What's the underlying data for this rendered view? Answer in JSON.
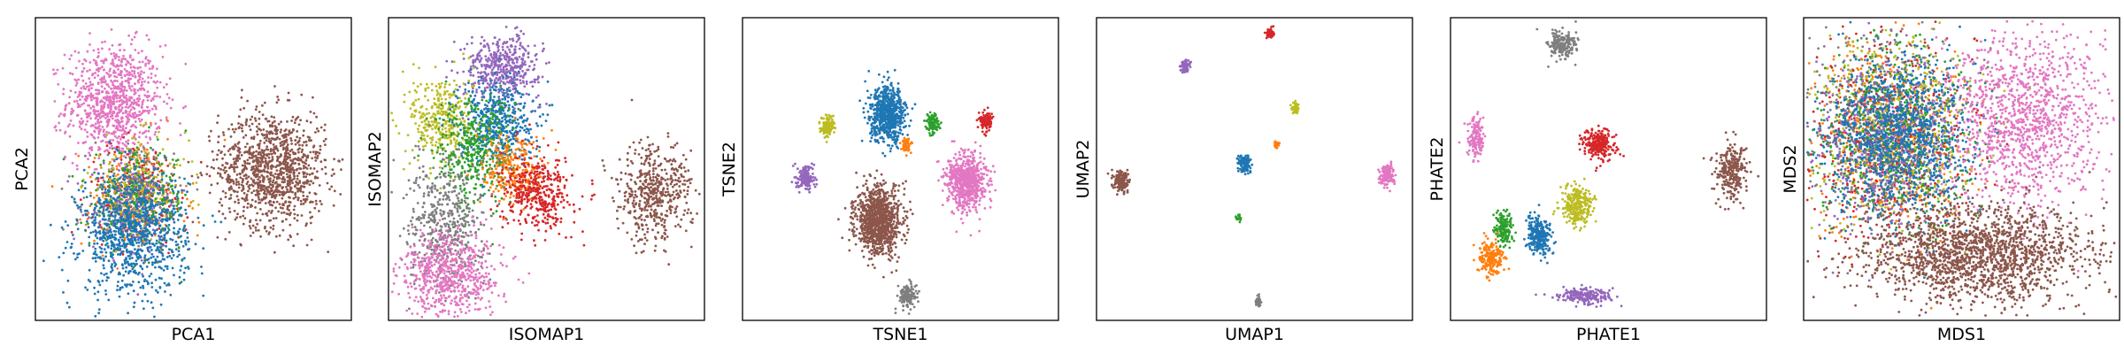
{
  "palette": {
    "blue": "#1f77b4",
    "orange": "#ff7f0e",
    "green": "#2ca02c",
    "red": "#d62728",
    "purple": "#9467bd",
    "brown": "#8c564b",
    "pink": "#e377c2",
    "gray": "#7f7f7f",
    "olive": "#bcbd22"
  },
  "chart_data": [
    {
      "type": "scatter",
      "title": "",
      "xlabel": "PCA1",
      "ylabel": "PCA2",
      "grid": false,
      "ticks": "none",
      "legend": "none",
      "clusters": [
        {
          "color": "pink",
          "cx": 0.25,
          "cy": 0.72,
          "sx": 0.075,
          "sy": 0.095,
          "n": 900
        },
        {
          "color": "brown",
          "cx": 0.75,
          "cy": 0.5,
          "sx": 0.085,
          "sy": 0.095,
          "n": 1100
        },
        {
          "color": "red",
          "cx": 0.33,
          "cy": 0.43,
          "sx": 0.08,
          "sy": 0.08,
          "n": 220
        },
        {
          "color": "orange",
          "cx": 0.31,
          "cy": 0.4,
          "sx": 0.08,
          "sy": 0.09,
          "n": 220
        },
        {
          "color": "gray",
          "cx": 0.3,
          "cy": 0.42,
          "sx": 0.07,
          "sy": 0.07,
          "n": 200
        },
        {
          "color": "olive",
          "cx": 0.32,
          "cy": 0.44,
          "sx": 0.08,
          "sy": 0.08,
          "n": 200
        },
        {
          "color": "green",
          "cx": 0.33,
          "cy": 0.4,
          "sx": 0.08,
          "sy": 0.08,
          "n": 220
        },
        {
          "color": "purple",
          "cx": 0.31,
          "cy": 0.36,
          "sx": 0.07,
          "sy": 0.08,
          "n": 150
        },
        {
          "color": "blue",
          "cx": 0.31,
          "cy": 0.29,
          "sx": 0.085,
          "sy": 0.1,
          "n": 1000
        }
      ]
    },
    {
      "type": "scatter",
      "title": "",
      "xlabel": "ISOMAP1",
      "ylabel": "ISOMAP2",
      "grid": false,
      "ticks": "none",
      "legend": "none",
      "clusters": [
        {
          "color": "purple",
          "cx": 0.36,
          "cy": 0.84,
          "sx": 0.06,
          "sy": 0.05,
          "n": 450
        },
        {
          "color": "olive",
          "cx": 0.17,
          "cy": 0.66,
          "sx": 0.05,
          "sy": 0.08,
          "n": 350
        },
        {
          "color": "blue",
          "cx": 0.34,
          "cy": 0.66,
          "sx": 0.06,
          "sy": 0.07,
          "n": 500
        },
        {
          "color": "green",
          "cx": 0.27,
          "cy": 0.56,
          "sx": 0.06,
          "sy": 0.09,
          "n": 380
        },
        {
          "color": "orange",
          "cx": 0.4,
          "cy": 0.5,
          "sx": 0.05,
          "sy": 0.06,
          "n": 250
        },
        {
          "color": "red",
          "cx": 0.47,
          "cy": 0.42,
          "sx": 0.055,
          "sy": 0.06,
          "n": 420
        },
        {
          "color": "gray",
          "cx": 0.18,
          "cy": 0.32,
          "sx": 0.06,
          "sy": 0.11,
          "n": 500
        },
        {
          "color": "pink",
          "cx": 0.2,
          "cy": 0.15,
          "sx": 0.08,
          "sy": 0.07,
          "n": 650
        },
        {
          "color": "brown",
          "cx": 0.84,
          "cy": 0.42,
          "sx": 0.06,
          "sy": 0.08,
          "n": 500
        }
      ]
    },
    {
      "type": "scatter",
      "title": "",
      "xlabel": "TSNE1",
      "ylabel": "TSNE2",
      "grid": false,
      "ticks": "none",
      "legend": "none",
      "clusters": [
        {
          "color": "blue",
          "cx": 0.46,
          "cy": 0.68,
          "sx": 0.028,
          "sy": 0.045,
          "n": 700
        },
        {
          "color": "olive",
          "cx": 0.27,
          "cy": 0.64,
          "sx": 0.012,
          "sy": 0.018,
          "n": 120
        },
        {
          "color": "green",
          "cx": 0.6,
          "cy": 0.65,
          "sx": 0.01,
          "sy": 0.016,
          "n": 100
        },
        {
          "color": "red",
          "cx": 0.77,
          "cy": 0.66,
          "sx": 0.01,
          "sy": 0.016,
          "n": 100
        },
        {
          "color": "orange",
          "cx": 0.52,
          "cy": 0.58,
          "sx": 0.008,
          "sy": 0.014,
          "n": 60
        },
        {
          "color": "purple",
          "cx": 0.2,
          "cy": 0.47,
          "sx": 0.014,
          "sy": 0.02,
          "n": 150
        },
        {
          "color": "pink",
          "cx": 0.71,
          "cy": 0.46,
          "sx": 0.03,
          "sy": 0.045,
          "n": 700
        },
        {
          "color": "brown",
          "cx": 0.43,
          "cy": 0.33,
          "sx": 0.036,
          "sy": 0.055,
          "n": 1000
        },
        {
          "color": "gray",
          "cx": 0.52,
          "cy": 0.08,
          "sx": 0.014,
          "sy": 0.02,
          "n": 140
        }
      ]
    },
    {
      "type": "scatter",
      "title": "",
      "xlabel": "UMAP1",
      "ylabel": "UMAP2",
      "grid": false,
      "ticks": "none",
      "legend": "none",
      "clusters": [
        {
          "color": "red",
          "cx": 0.55,
          "cy": 0.95,
          "sx": 0.006,
          "sy": 0.008,
          "n": 60
        },
        {
          "color": "purple",
          "cx": 0.28,
          "cy": 0.84,
          "sx": 0.007,
          "sy": 0.01,
          "n": 80
        },
        {
          "color": "olive",
          "cx": 0.63,
          "cy": 0.7,
          "sx": 0.006,
          "sy": 0.009,
          "n": 60
        },
        {
          "color": "orange",
          "cx": 0.57,
          "cy": 0.58,
          "sx": 0.004,
          "sy": 0.006,
          "n": 25
        },
        {
          "color": "blue",
          "cx": 0.47,
          "cy": 0.52,
          "sx": 0.01,
          "sy": 0.014,
          "n": 120
        },
        {
          "color": "brown",
          "cx": 0.08,
          "cy": 0.46,
          "sx": 0.012,
          "sy": 0.018,
          "n": 160
        },
        {
          "color": "pink",
          "cx": 0.92,
          "cy": 0.48,
          "sx": 0.011,
          "sy": 0.017,
          "n": 150
        },
        {
          "color": "green",
          "cx": 0.45,
          "cy": 0.34,
          "sx": 0.004,
          "sy": 0.006,
          "n": 25
        },
        {
          "color": "gray",
          "cx": 0.51,
          "cy": 0.06,
          "sx": 0.006,
          "sy": 0.008,
          "n": 50
        }
      ]
    },
    {
      "type": "scatter",
      "title": "",
      "xlabel": "PHATE1",
      "ylabel": "PHATE2",
      "grid": false,
      "ticks": "none",
      "legend": "none",
      "clusters": [
        {
          "color": "gray",
          "cx": 0.35,
          "cy": 0.91,
          "sx": 0.022,
          "sy": 0.025,
          "n": 200
        },
        {
          "color": "pink",
          "cx": 0.08,
          "cy": 0.6,
          "sx": 0.014,
          "sy": 0.035,
          "n": 140
        },
        {
          "color": "red",
          "cx": 0.47,
          "cy": 0.58,
          "sx": 0.025,
          "sy": 0.025,
          "n": 260
        },
        {
          "color": "brown",
          "cx": 0.89,
          "cy": 0.49,
          "sx": 0.025,
          "sy": 0.045,
          "n": 280
        },
        {
          "color": "olive",
          "cx": 0.4,
          "cy": 0.38,
          "sx": 0.025,
          "sy": 0.035,
          "n": 280
        },
        {
          "color": "blue",
          "cx": 0.28,
          "cy": 0.28,
          "sx": 0.02,
          "sy": 0.03,
          "n": 260
        },
        {
          "color": "green",
          "cx": 0.17,
          "cy": 0.3,
          "sx": 0.014,
          "sy": 0.028,
          "n": 160
        },
        {
          "color": "orange",
          "cx": 0.13,
          "cy": 0.21,
          "sx": 0.02,
          "sy": 0.028,
          "n": 200
        },
        {
          "color": "purple",
          "cx": 0.43,
          "cy": 0.08,
          "sx": 0.045,
          "sy": 0.012,
          "n": 200
        }
      ]
    },
    {
      "type": "scatter",
      "title": "",
      "xlabel": "MDS1",
      "ylabel": "MDS2",
      "grid": false,
      "ticks": "none",
      "legend": "none",
      "clusters": [
        {
          "color": "gray",
          "cx": 0.25,
          "cy": 0.63,
          "sx": 0.13,
          "sy": 0.16,
          "n": 500
        },
        {
          "color": "orange",
          "cx": 0.27,
          "cy": 0.62,
          "sx": 0.13,
          "sy": 0.16,
          "n": 500
        },
        {
          "color": "red",
          "cx": 0.28,
          "cy": 0.6,
          "sx": 0.13,
          "sy": 0.16,
          "n": 500
        },
        {
          "color": "olive",
          "cx": 0.27,
          "cy": 0.63,
          "sx": 0.13,
          "sy": 0.16,
          "n": 500
        },
        {
          "color": "green",
          "cx": 0.28,
          "cy": 0.61,
          "sx": 0.13,
          "sy": 0.16,
          "n": 500
        },
        {
          "color": "purple",
          "cx": 0.24,
          "cy": 0.6,
          "sx": 0.12,
          "sy": 0.15,
          "n": 500
        },
        {
          "color": "blue",
          "cx": 0.3,
          "cy": 0.6,
          "sx": 0.11,
          "sy": 0.13,
          "n": 1200
        },
        {
          "color": "pink",
          "cx": 0.7,
          "cy": 0.66,
          "sx": 0.12,
          "sy": 0.15,
          "n": 1200
        },
        {
          "color": "brown",
          "cx": 0.55,
          "cy": 0.22,
          "sx": 0.18,
          "sy": 0.08,
          "n": 1800
        }
      ]
    }
  ]
}
